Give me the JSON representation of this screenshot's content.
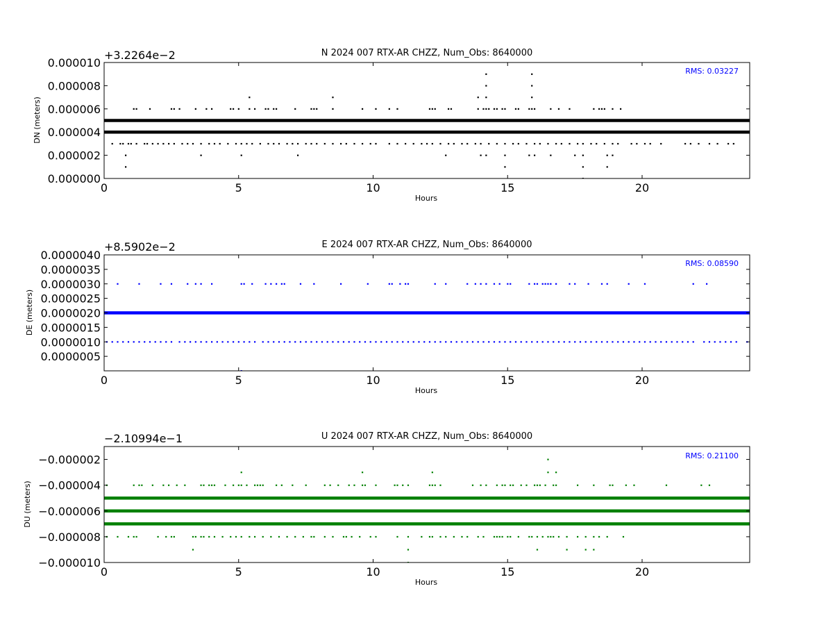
{
  "chart_data": [
    {
      "type": "scatter",
      "title": "N 2024 007 RTX-AR  CHZZ, Num_Obs: 8640000",
      "offset_label": "+3.2264e−2",
      "ylabel": "DN (meters)",
      "xlabel": "Hours",
      "xlim": [
        0,
        24
      ],
      "ylim": [
        0,
        1e-05
      ],
      "x_ticks": [
        0,
        5,
        10,
        15,
        20
      ],
      "x_tick_labels": [
        "0",
        "5",
        "10",
        "15",
        "20"
      ],
      "y_ticks": [
        0,
        2e-06,
        4e-06,
        6e-06,
        8e-06,
        1e-05
      ],
      "y_tick_labels": [
        "0.000000",
        "0.000002",
        "0.000004",
        "0.000006",
        "0.000008",
        "0.000010"
      ],
      "rms_text": "RMS:  0.03227",
      "rms_color": "#0000ff",
      "color": "#000000",
      "dense_levels": [
        4e-06,
        5e-06
      ],
      "series": [
        {
          "level": 6e-06,
          "x": [
            1.1,
            1.2,
            1.7,
            2.5,
            2.6,
            2.8,
            3.4,
            3.8,
            4.0,
            4.7,
            4.8,
            5.0,
            5.4,
            5.6,
            6.0,
            6.1,
            6.3,
            6.4,
            7.1,
            7.7,
            7.8,
            7.9,
            8.5,
            9.6,
            10.1,
            10.6,
            10.9,
            12.1,
            12.2,
            12.3,
            12.8,
            12.9,
            13.9,
            14.1,
            14.2,
            14.3,
            14.5,
            14.6,
            14.8,
            14.9,
            15.3,
            15.4,
            15.8,
            15.9,
            16.0,
            16.6,
            16.9,
            17.3,
            18.2,
            18.4,
            18.5,
            18.6,
            18.9,
            19.2
          ]
        },
        {
          "level": 7e-06,
          "x": [
            5.4,
            8.5,
            13.9,
            14.2,
            15.9
          ]
        },
        {
          "level": 8e-06,
          "x": [
            14.2,
            15.9
          ]
        },
        {
          "level": 9e-06,
          "x": [
            14.2,
            15.9
          ]
        },
        {
          "level": 3e-06,
          "x": [
            0.3,
            0.6,
            0.7,
            0.9,
            1.0,
            1.2,
            1.5,
            1.6,
            1.8,
            2.0,
            2.2,
            2.4,
            2.6,
            2.9,
            3.1,
            3.3,
            3.6,
            3.9,
            4.1,
            4.3,
            4.6,
            4.9,
            5.1,
            5.3,
            5.5,
            5.8,
            6.1,
            6.3,
            6.5,
            6.8,
            7.0,
            7.2,
            7.5,
            7.7,
            7.9,
            8.2,
            8.5,
            8.8,
            9.0,
            9.3,
            9.6,
            9.9,
            10.1,
            10.6,
            10.9,
            11.2,
            11.5,
            11.8,
            12.0,
            12.2,
            12.5,
            12.8,
            13.0,
            13.3,
            13.5,
            13.8,
            14.0,
            14.3,
            14.6,
            14.9,
            15.2,
            15.4,
            15.7,
            16.0,
            16.2,
            16.5,
            16.8,
            17.0,
            17.3,
            17.6,
            17.8,
            18.1,
            18.3,
            18.6,
            18.9,
            19.1,
            19.6,
            19.8,
            20.1,
            20.3,
            20.7,
            21.6,
            21.8,
            22.1,
            22.5,
            22.8,
            23.2,
            23.4
          ]
        },
        {
          "level": 2e-06,
          "x": [
            0.8,
            3.6,
            5.1,
            7.2,
            12.7,
            14.0,
            14.2,
            14.9,
            15.8,
            16.0,
            16.6,
            17.5,
            17.8,
            18.7,
            18.9
          ]
        },
        {
          "level": 1e-06,
          "x": [
            0.8,
            14.9,
            17.8,
            18.7
          ]
        },
        {
          "level": 0,
          "x": [
            17.8
          ]
        }
      ]
    },
    {
      "type": "scatter",
      "title": "E 2024 007 RTX-AR  CHZZ, Num_Obs: 8640000",
      "offset_label": "+8.5902e−2",
      "ylabel": "DE (meters)",
      "xlabel": "Hours",
      "xlim": [
        0,
        24
      ],
      "ylim": [
        0,
        4e-06
      ],
      "x_ticks": [
        0,
        5,
        10,
        15,
        20
      ],
      "x_tick_labels": [
        "0",
        "5",
        "10",
        "15",
        "20"
      ],
      "y_ticks": [
        5e-07,
        1e-06,
        1.5e-06,
        2e-06,
        2.5e-06,
        3e-06,
        3.5e-06,
        4e-06
      ],
      "y_tick_labels": [
        "0.0000005",
        "0.0000010",
        "0.0000015",
        "0.0000020",
        "0.0000025",
        "0.0000030",
        "0.0000035",
        "0.0000040"
      ],
      "rms_text": "RMS:  0.08590",
      "rms_color": "#0000ff",
      "color": "#0000ff",
      "dense_levels": [
        2e-06
      ],
      "series": [
        {
          "level": 3e-06,
          "x": [
            0.5,
            1.3,
            2.1,
            2.5,
            3.1,
            3.4,
            3.6,
            4.0,
            5.1,
            5.2,
            5.5,
            6.0,
            6.2,
            6.4,
            6.6,
            6.7,
            7.3,
            7.8,
            8.8,
            9.8,
            10.6,
            10.7,
            11.0,
            11.2,
            11.3,
            12.3,
            12.7,
            13.5,
            13.8,
            14.0,
            14.2,
            14.5,
            14.7,
            15.0,
            15.1,
            15.8,
            16.0,
            16.1,
            16.3,
            16.4,
            16.5,
            16.6,
            16.8,
            17.3,
            17.5,
            18.0,
            18.5,
            18.7,
            19.5,
            20.1,
            21.9,
            22.4
          ]
        },
        {
          "level": 1e-06,
          "x": [
            0.1,
            0.3,
            0.5,
            0.7,
            0.9,
            1.1,
            1.3,
            1.5,
            1.7,
            1.9,
            2.1,
            2.3,
            2.5,
            2.8,
            3.0,
            3.2,
            3.4,
            3.6,
            3.8,
            4.0,
            4.2,
            4.4,
            4.6,
            4.8,
            5.0,
            5.2,
            5.4,
            5.6,
            5.9,
            6.1,
            6.3,
            6.5,
            6.7,
            6.9,
            7.1,
            7.3,
            7.5,
            7.7,
            7.9,
            8.1,
            8.3,
            8.5,
            8.7,
            8.9,
            9.1,
            9.3,
            9.5,
            9.7,
            9.9,
            10.1,
            10.3,
            10.5,
            10.7,
            10.9,
            11.1,
            11.3,
            11.5,
            11.7,
            11.9,
            12.1,
            12.3,
            12.5,
            12.7,
            12.9,
            13.1,
            13.3,
            13.5,
            13.7,
            13.9,
            14.1,
            14.3,
            14.5,
            14.7,
            14.9,
            15.1,
            15.3,
            15.5,
            15.7,
            15.9,
            16.1,
            16.3,
            16.5,
            16.7,
            16.9,
            17.1,
            17.3,
            17.5,
            17.7,
            17.9,
            18.1,
            18.3,
            18.5,
            18.7,
            18.9,
            19.1,
            19.3,
            19.5,
            19.7,
            19.9,
            20.1,
            20.3,
            20.5,
            20.7,
            20.9,
            21.1,
            21.3,
            21.5,
            21.7,
            21.9,
            22.3,
            22.5,
            22.7,
            22.9,
            23.1,
            23.3,
            23.5,
            23.9
          ]
        },
        {
          "level": 0,
          "x": [
            5.1
          ]
        }
      ]
    },
    {
      "type": "scatter",
      "title": "U 2024 007 RTX-AR  CHZZ, Num_Obs: 8640000",
      "offset_label": "−2.10994e−1",
      "ylabel": "DU (meters)",
      "xlabel": "Hours",
      "xlim": [
        0,
        24
      ],
      "ylim": [
        -1e-05,
        -1e-06
      ],
      "x_ticks": [
        0,
        5,
        10,
        15,
        20
      ],
      "x_tick_labels": [
        "0",
        "5",
        "10",
        "15",
        "20"
      ],
      "y_ticks": [
        -1e-05,
        -8e-06,
        -6e-06,
        -4e-06,
        -2e-06
      ],
      "y_tick_labels": [
        "−0.000010",
        "−0.000008",
        "−0.000006",
        "−0.000004",
        "−0.000002"
      ],
      "rms_text": "RMS:  0.21100",
      "rms_color": "#0000ff",
      "color": "#008000",
      "dense_levels": [
        -5e-06,
        -6e-06,
        -7e-06
      ],
      "series": [
        {
          "level": -4e-06,
          "x": [
            0.1,
            1.1,
            1.3,
            1.4,
            1.8,
            2.2,
            2.4,
            2.7,
            3.0,
            3.6,
            3.7,
            3.9,
            4.0,
            4.1,
            4.5,
            4.8,
            5.0,
            5.1,
            5.3,
            5.6,
            5.7,
            5.8,
            5.9,
            6.4,
            6.6,
            7.0,
            7.5,
            8.2,
            8.4,
            8.7,
            9.1,
            9.3,
            9.6,
            9.7,
            10.1,
            10.8,
            10.9,
            11.1,
            11.3,
            12.1,
            12.2,
            12.3,
            12.5,
            13.7,
            14.0,
            14.2,
            14.6,
            14.8,
            14.9,
            15.1,
            15.2,
            15.5,
            15.7,
            16.0,
            16.1,
            16.2,
            16.4,
            16.7,
            16.8,
            17.6,
            18.2,
            18.8,
            18.9,
            19.4,
            19.7,
            20.9,
            22.2,
            22.5
          ]
        },
        {
          "level": -8e-06,
          "x": [
            0.1,
            0.5,
            0.9,
            1.1,
            1.2,
            2.0,
            2.3,
            2.5,
            2.6,
            3.3,
            3.4,
            3.6,
            3.7,
            3.9,
            4.1,
            4.4,
            4.7,
            4.9,
            5.1,
            5.4,
            5.6,
            5.9,
            6.2,
            6.5,
            6.8,
            7.1,
            7.4,
            7.7,
            7.8,
            8.2,
            8.5,
            8.9,
            9.0,
            9.2,
            9.5,
            9.9,
            10.1,
            10.9,
            11.3,
            11.8,
            12.1,
            12.2,
            12.5,
            12.7,
            13.0,
            13.3,
            13.5,
            13.9,
            14.1,
            14.5,
            14.6,
            14.7,
            14.8,
            15.0,
            15.1,
            15.4,
            15.8,
            15.9,
            16.1,
            16.3,
            16.5,
            16.6,
            16.7,
            16.9,
            17.2,
            17.6,
            17.9,
            18.2,
            18.4,
            18.7,
            19.3
          ]
        },
        {
          "level": -3e-06,
          "x": [
            5.1,
            9.6,
            12.2,
            16.5,
            16.8
          ]
        },
        {
          "level": -2e-06,
          "x": [
            16.5
          ]
        },
        {
          "level": -9e-06,
          "x": [
            3.3,
            11.3,
            16.1,
            17.2,
            17.9,
            18.2
          ]
        },
        {
          "level": -1e-05,
          "x": [
            11.3
          ]
        }
      ]
    }
  ]
}
